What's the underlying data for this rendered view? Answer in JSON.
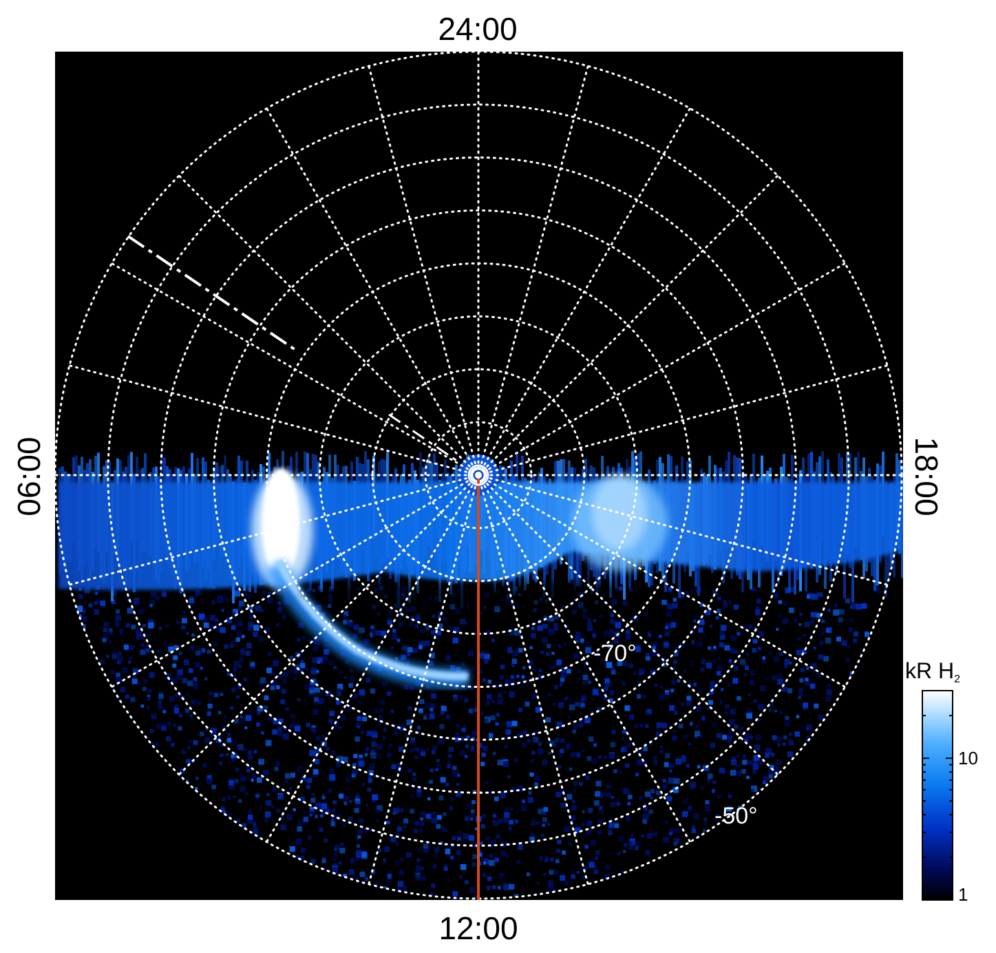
{
  "chart_data": {
    "type": "heatmap",
    "projection": "polar",
    "hemisphere": "south",
    "local_time_labels": {
      "top": "24:00",
      "bottom": "12:00",
      "left": "06:00",
      "right": "18:00"
    },
    "latitude_labels": [
      "-70°",
      "-50°"
    ],
    "latitude_rings_deg": [
      -85,
      -80,
      -75,
      -70,
      -65,
      -60,
      -55,
      -50
    ],
    "meridian_step_hours": 1,
    "marked_meridian_local_time": "12:00",
    "colorbar": {
      "label_main": "kR H",
      "label_sub": "2",
      "ticks": [
        "1",
        "10"
      ],
      "range": [
        1,
        30
      ],
      "scale": "log",
      "colormap": [
        "#000000",
        "#000a5a",
        "#0033c8",
        "#0a7af0",
        "#4fb0ff",
        "#b8e0ff",
        "#ffffff"
      ]
    },
    "emission_features": [
      {
        "feature": "main emission band (dawn-dusk)",
        "intensity_kR": 10
      },
      {
        "feature": "bright dawn spot",
        "intensity_kR": 30
      },
      {
        "feature": "dusk enhancement",
        "intensity_kR": 20
      },
      {
        "feature": "arc",
        "intensity_kR": 15
      }
    ],
    "colors": {
      "background": "#000000",
      "grid": "#ffffff",
      "marked_meridian": "#d44a1a"
    }
  }
}
